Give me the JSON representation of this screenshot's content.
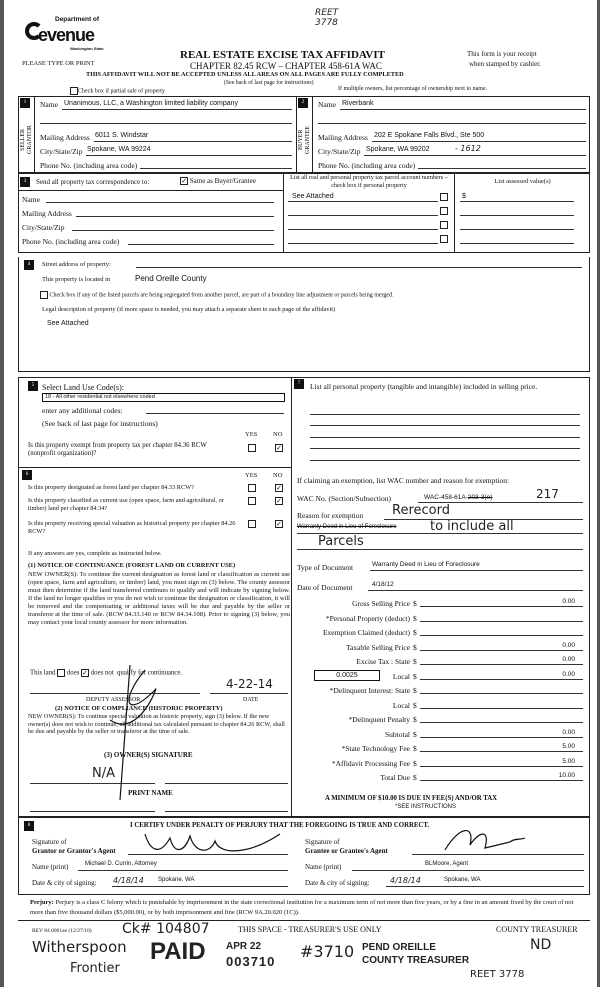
{
  "header": {
    "logo_top": "Department of",
    "logo_main": "evenue",
    "logo_sub": "Washington State",
    "type_print": "PLEASE TYPE OR PRINT",
    "title": "REAL ESTATE EXCISE TAX AFFIDAVIT",
    "chapter": "CHAPTER 82.45 RCW – CHAPTER 458-61A WAC",
    "receipt1": "This form is your receipt",
    "receipt2": "when stamped by cashier.",
    "warning": "THIS AFFIDAVIT WILL NOT BE ACCEPTED UNLESS ALL AREAS ON ALL PAGES ARE FULLY COMPLETED",
    "see_back": "(See back of last page for instructions)",
    "partial_sale": "Check box if partial sale of property",
    "multiple_owners": "If multiple owners, list percentage of ownership next to name.",
    "reet_note": "REET 3778"
  },
  "seller": {
    "num": "1",
    "side": "SELLER GRANTOR",
    "name_label": "Name",
    "name": "Unanimous, LLC, a Washington limited liability company",
    "addr_label": "Mailing Address",
    "addr": "6011 S. Windstar",
    "city_label": "City/State/Zip",
    "city": "Spokane, WA 99224",
    "phone_label": "Phone No. (including area code)"
  },
  "buyer": {
    "num": "2",
    "side": "BUYER GRANTEE",
    "name_label": "Name",
    "name": "Riverbank",
    "addr_label": "Mailing Address",
    "addr": "202 E Spokane Falls Blvd., Ste 500",
    "city_label": "City/State/Zip",
    "city": "Spokane, WA 99202",
    "city_hw": "- 1612",
    "phone_label": "Phone No. (including area code)"
  },
  "section3": {
    "num": "3",
    "send_label": "Send all property tax correspondence to:",
    "same_label": "Same as Buyer/Grantee",
    "same_checked": true,
    "name_label": "Name",
    "addr_label": "Mailing Address",
    "city_label": "City/State/Zip",
    "phone_label": "Phone No. (including area code)",
    "parcel_header": "List all real and personal property tax parcel account numbers – check box if personal property",
    "parcel_1": "See Attached",
    "assessed_header": "List assessed value(s)",
    "assessed_1": "$"
  },
  "section4": {
    "num": "4",
    "street_label": "Street address of property:",
    "located_label": "This property is located in",
    "county": "Pend Oreille County",
    "segregated": "Check box if any of the listed parcels are being segregated from another parcel, are part of a boundary line adjustment or parcels being merged.",
    "legal_label": "Legal description of property (if more space is needed, you may attach a separate sheet to each page of the affidavit)",
    "legal": "See Attached"
  },
  "section5": {
    "num": "5",
    "land_use_label": "Select Land Use Code(s):",
    "land_use": "18 - All other residential not elsewhere coded",
    "additional": "enter any additional codes:",
    "see_back": "(See back of last page for instructions)",
    "yes": "YES",
    "no": "NO",
    "exempt_q": "Is this property exempt from property tax per chapter 84.36 RCW (nonprofit organization)?",
    "exempt_answer": "NO"
  },
  "section6": {
    "num": "6",
    "yes": "YES",
    "no": "NO",
    "questions": [
      {
        "q": "Is this property designated as forest land per chapter 84.33 RCW?",
        "answer": "NO"
      },
      {
        "q": "Is this property classified as current use (open space, farm and agricultural, or timber) land per chapter 84.34?",
        "answer": "NO"
      },
      {
        "q": "Is this property receiving special valuation as historical property per chapter 84.26 RCW?",
        "answer": "NO"
      }
    ],
    "if_yes": "If any answers are yes, complete as instructed below.",
    "notice1_title": "(1) NOTICE OF CONTINUANCE (FOREST LAND OR CURRENT USE)",
    "notice1_text": "NEW OWNER(S): To continue the current designation as forest land or classification as current use (open space, farm and agriculture, or timber) land, you must sign on (3) below. The county assessor must then determine if the land transferred continues to qualify and will indicate by signing below. If the land no longer qualifies or you do not wish to continue the designation or classification, it will be removed and the compensating or additional taxes will be due and payable by the seller or transferor at the time of sale. (RCW 84.33.140 or RCW 84.34.108). Prior to signing (3) below, you may contact your local county assessor for more information.",
    "this_land": "This land",
    "does": "does",
    "does_not": "does not",
    "qualify": "qualify for continuance.",
    "does_not_checked": true,
    "assessor_date": "4-22-14",
    "deputy_label": "DEPUTY ASSESSOR",
    "date_label": "DATE",
    "notice2_title": "(2) NOTICE OF COMPLIANCE (HISTORIC PROPERTY)",
    "notice2_text": "NEW OWNER(S): To continue special valuation as historic property, sign (3) below. If the new owner(s) does not wish to continue, all additional tax calculated pursuant to chapter 84.26 RCW, shall be due and payable by the seller or transferor at the time of sale.",
    "owner_sig_label": "(3) OWNER(S) SIGNATURE",
    "owner_sig_hw": "N/A",
    "print_name_label": "PRINT NAME"
  },
  "section7": {
    "num": "7",
    "personal_label": "List all personal property (tangible and intangible) included in selling price.",
    "exemption_label": "If claiming an exemption, list WAC number and reason for exemption:",
    "wac_label": "WAC No. (Section/Subsection)",
    "wac": "WAC-458-61A-",
    "wac_struck": "203-3(e)",
    "wac_hw": "217",
    "reason_label": "Reason for exemption",
    "reason_struck": "Warranty Deed in Lieu of Foreclosure",
    "reason_hw1": "Rerecord",
    "reason_hw2": "to include all",
    "reason_hw3": "Parcels",
    "doc_type_label": "Type of Document",
    "doc_type": "Warranty Deed in Lieu of Foreclosure",
    "doc_date_label": "Date of Document",
    "doc_date": "4/18/12",
    "local_rate": "0.0025",
    "fees": [
      {
        "label": "Gross Selling Price",
        "value": "0.00"
      },
      {
        "label": "*Personal Property (deduct)",
        "value": ""
      },
      {
        "label": "Exemption Claimed (deduct)",
        "value": ""
      },
      {
        "label": "Taxable Selling Price",
        "value": "0.00"
      },
      {
        "label": "Excise Tax : State",
        "value": "0.00"
      },
      {
        "label": "Local",
        "value": "0.00"
      },
      {
        "label": "*Delinquent Interest: State",
        "value": ""
      },
      {
        "label": "Local",
        "value": ""
      },
      {
        "label": "*Delinquent Penalty",
        "value": ""
      },
      {
        "label": "Subtotal",
        "value": "0.00"
      },
      {
        "label": "*State Technology Fee",
        "value": "5.00"
      },
      {
        "label": "*Affidavit Processing Fee",
        "value": "5.00"
      },
      {
        "label": "Total Due",
        "value": "10.00"
      }
    ],
    "currency": "$",
    "minimum": "A MINIMUM OF $10.00 IS DUE IN FEE(S) AND/OR TAX",
    "see_instr": "*SEE INSTRUCTIONS"
  },
  "section8": {
    "num": "8",
    "certify": "I CERTIFY UNDER PENALTY OF PERJURY THAT THE FOREGOING IS TRUE AND CORRECT.",
    "sig_of": "Signature of",
    "grantor_agent": "Grantor or Grantor's Agent",
    "grantee_agent": "Grantee or Grantee's Agent",
    "name_print": "Name (print)",
    "grantor_name": "Michael D. Currin, Attorney",
    "grantee_name": "BLMoore, Agent",
    "date_city": "Date & city of signing:",
    "grantor_date": "4/18/14",
    "grantor_city": "Spokane, WA",
    "grantee_date": "4/18/14",
    "grantee_city": "Spokane, WA"
  },
  "perjury": {
    "label": "Perjury:",
    "text": "Perjury is a class C felony which is punishable by imprisonment in the state correctional institution for a maximum term of not more than five years, or by a fine in an amount fixed by the court of not more than five thousand dollars ($5,000.00), or by both imprisonment and fine (RCW 9A.20.020 (1C))."
  },
  "stamp": {
    "paid": "PAID",
    "date": "APR 22",
    "number": "003710",
    "county1": "PEND OREILLE",
    "county2": "COUNTY TREASURER"
  },
  "footer": {
    "rev": "REV 84 0001ae (12/27/10)",
    "treasurer_use": "THIS SPACE - TREASURER'S USE ONLY",
    "county_treasurer": "COUNTY TREASURER",
    "ck": "Ck# 104807",
    "witherspoon": "Witherspoon",
    "frontier": "Frontier",
    "num": "#3710",
    "initials": "ND",
    "reet": "REET 3778"
  }
}
